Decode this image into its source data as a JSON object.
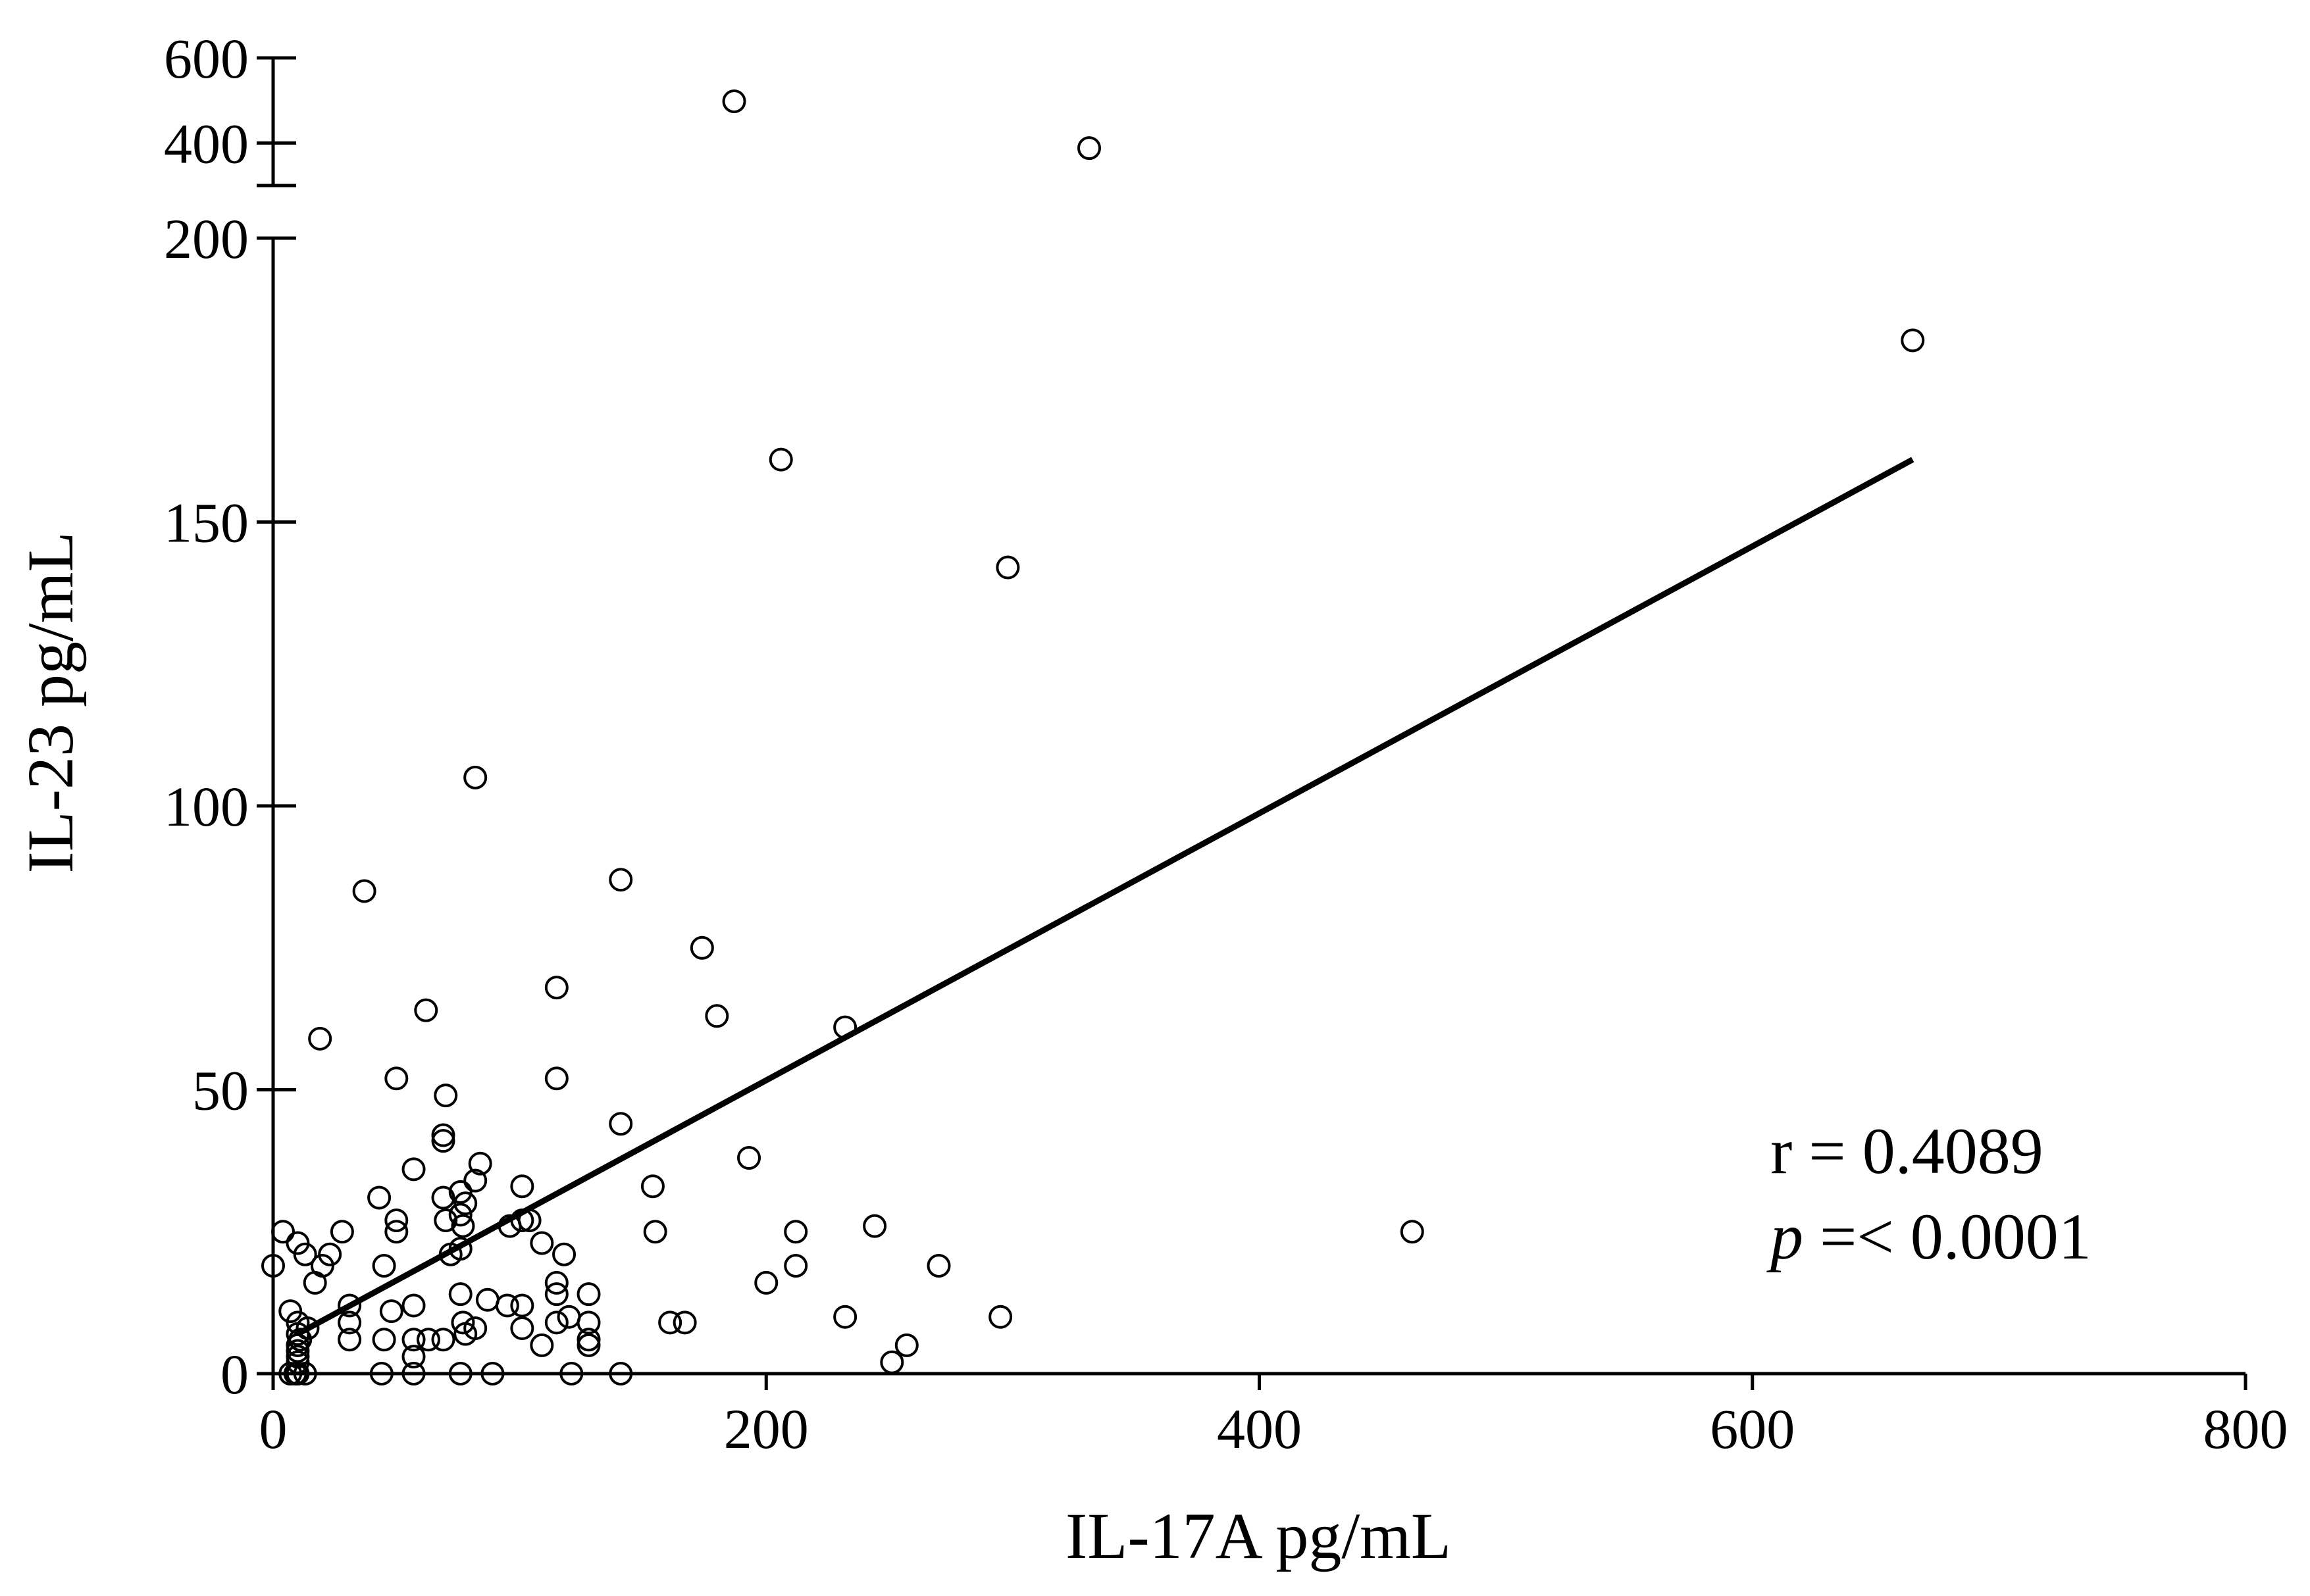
{
  "chart_data": {
    "type": "scatter",
    "xlabel": "IL-17A pg/mL",
    "ylabel": "IL-23 pg/mL",
    "xlim": [
      0,
      800
    ],
    "x_ticks": [
      0,
      200,
      400,
      600,
      800
    ],
    "y_lower_range": [
      0,
      200
    ],
    "y_lower_ticks": [
      0,
      50,
      100,
      150,
      200
    ],
    "y_upper_range": [
      300,
      600
    ],
    "y_upper_ticks": [
      400,
      600
    ],
    "grid": false,
    "annotations": {
      "r_text": "r = 0.4089",
      "p_symbol": "p",
      "p_value_text": " =< 0.0001"
    },
    "regression_line": {
      "x_start": 10,
      "y_start": 7,
      "x_end": 665,
      "y_end": 161
    },
    "points": [
      [
        187,
        498
      ],
      [
        331,
        388
      ],
      [
        665,
        182
      ],
      [
        206,
        161
      ],
      [
        298,
        142
      ],
      [
        82,
        105
      ],
      [
        37,
        85
      ],
      [
        141,
        87
      ],
      [
        174,
        75
      ],
      [
        115,
        68
      ],
      [
        62,
        64
      ],
      [
        180,
        63
      ],
      [
        19,
        59
      ],
      [
        232,
        61
      ],
      [
        50,
        52
      ],
      [
        115,
        52
      ],
      [
        70,
        49
      ],
      [
        69,
        42
      ],
      [
        141,
        44
      ],
      [
        69,
        41
      ],
      [
        84,
        37
      ],
      [
        57,
        36
      ],
      [
        193,
        38
      ],
      [
        82,
        34
      ],
      [
        69,
        31
      ],
      [
        76,
        32
      ],
      [
        43,
        31
      ],
      [
        101,
        33
      ],
      [
        154,
        33
      ],
      [
        78,
        30
      ],
      [
        76,
        28
      ],
      [
        50,
        27
      ],
      [
        70,
        27
      ],
      [
        101,
        27
      ],
      [
        104,
        27
      ],
      [
        96,
        26
      ],
      [
        77,
        26
      ],
      [
        50,
        25
      ],
      [
        28,
        25
      ],
      [
        155,
        25
      ],
      [
        4,
        25
      ],
      [
        212,
        25
      ],
      [
        244,
        26
      ],
      [
        462,
        25
      ],
      [
        10,
        23
      ],
      [
        109,
        23
      ],
      [
        13,
        21
      ],
      [
        23,
        21
      ],
      [
        72,
        21
      ],
      [
        76,
        22
      ],
      [
        118,
        21
      ],
      [
        0,
        19
      ],
      [
        20,
        19
      ],
      [
        45,
        19
      ],
      [
        212,
        19
      ],
      [
        270,
        19
      ],
      [
        17,
        16
      ],
      [
        115,
        16
      ],
      [
        200,
        16
      ],
      [
        76,
        14
      ],
      [
        115,
        14
      ],
      [
        128,
        14
      ],
      [
        87,
        13
      ],
      [
        31,
        12
      ],
      [
        57,
        12
      ],
      [
        95,
        12
      ],
      [
        101,
        12
      ],
      [
        7,
        11
      ],
      [
        48,
        11
      ],
      [
        120,
        10
      ],
      [
        232,
        10
      ],
      [
        295,
        10
      ],
      [
        31,
        9
      ],
      [
        77,
        9
      ],
      [
        115,
        9
      ],
      [
        128,
        9
      ],
      [
        161,
        9
      ],
      [
        167,
        9
      ],
      [
        10,
        9
      ],
      [
        14,
        8
      ],
      [
        82,
        8
      ],
      [
        101,
        8
      ],
      [
        78,
        7
      ],
      [
        10,
        7
      ],
      [
        11,
        6
      ],
      [
        31,
        6
      ],
      [
        45,
        6
      ],
      [
        57,
        6
      ],
      [
        63,
        6
      ],
      [
        69,
        6
      ],
      [
        128,
        6
      ],
      [
        10,
        5
      ],
      [
        109,
        5
      ],
      [
        128,
        5
      ],
      [
        257,
        5
      ],
      [
        10,
        4
      ],
      [
        10,
        3
      ],
      [
        57,
        3
      ],
      [
        10,
        2
      ],
      [
        251,
        2
      ],
      [
        7,
        0
      ],
      [
        9,
        0
      ],
      [
        10,
        0
      ],
      [
        13,
        0
      ],
      [
        44,
        0
      ],
      [
        57,
        0
      ],
      [
        76,
        0
      ],
      [
        89,
        0
      ],
      [
        121,
        0
      ],
      [
        141,
        0
      ]
    ]
  }
}
